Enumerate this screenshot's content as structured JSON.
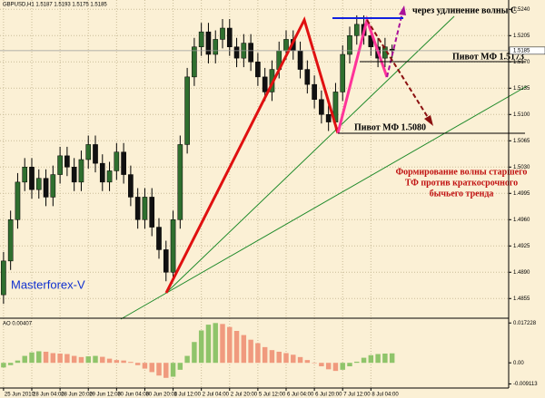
{
  "chart_data": [
    {
      "type": "candlestick",
      "title": "GBPUSD,H1  1.5187 1.5193 1.5175 1.5185",
      "open": [
        1.486,
        1.4905,
        1.496,
        1.501,
        1.503,
        1.5,
        1.5015,
        1.499,
        1.502,
        1.5045,
        1.503,
        1.501,
        1.504,
        1.506,
        1.5035,
        1.501,
        1.5025,
        1.505,
        1.502,
        1.499,
        1.496,
        1.499,
        1.495,
        1.492,
        1.489,
        1.496,
        1.506,
        1.515,
        1.519,
        1.521,
        1.518,
        1.52,
        1.5215,
        1.519,
        1.5175,
        1.5195,
        1.517,
        1.515,
        1.513,
        1.516,
        1.5185,
        1.52,
        1.5185,
        1.516,
        1.514,
        1.512,
        1.51,
        1.509,
        1.513,
        1.518,
        1.5205,
        1.522,
        1.5205,
        1.519,
        1.5175,
        1.5187
      ],
      "high": [
        1.4917,
        1.4972,
        1.5022,
        1.5042,
        1.5042,
        1.5027,
        1.5027,
        1.5032,
        1.5057,
        1.5057,
        1.5042,
        1.5052,
        1.5072,
        1.5072,
        1.5047,
        1.5037,
        1.5062,
        1.5062,
        1.5032,
        1.5002,
        1.5002,
        1.5002,
        1.4962,
        1.4932,
        1.4972,
        1.5072,
        1.5162,
        1.5202,
        1.5222,
        1.5222,
        1.5212,
        1.5227,
        1.5227,
        1.5202,
        1.5207,
        1.5207,
        1.5182,
        1.5162,
        1.5172,
        1.5197,
        1.5212,
        1.5212,
        1.5197,
        1.5172,
        1.5152,
        1.5132,
        1.5112,
        1.5142,
        1.5192,
        1.5217,
        1.5232,
        1.5232,
        1.5217,
        1.5202,
        1.5202,
        1.5193
      ],
      "low": [
        1.4848,
        1.4893,
        1.4948,
        1.4998,
        1.4988,
        1.4988,
        1.4978,
        1.4978,
        1.5008,
        1.5018,
        1.4998,
        1.4998,
        1.5028,
        1.5023,
        1.4998,
        1.4998,
        1.5013,
        1.5008,
        1.4978,
        1.4948,
        1.4948,
        1.4938,
        1.4908,
        1.4878,
        1.4878,
        1.4948,
        1.5048,
        1.5138,
        1.5178,
        1.5168,
        1.5168,
        1.5188,
        1.5178,
        1.5163,
        1.5163,
        1.5158,
        1.5138,
        1.5118,
        1.5118,
        1.5148,
        1.5173,
        1.5173,
        1.5148,
        1.5128,
        1.5108,
        1.5088,
        1.5078,
        1.5078,
        1.5118,
        1.5168,
        1.5193,
        1.5193,
        1.5178,
        1.5163,
        1.5163,
        1.5175
      ],
      "close": [
        1.4905,
        1.496,
        1.501,
        1.503,
        1.5,
        1.5015,
        1.499,
        1.502,
        1.5045,
        1.503,
        1.501,
        1.504,
        1.506,
        1.5035,
        1.501,
        1.5025,
        1.505,
        1.502,
        1.499,
        1.496,
        1.499,
        1.495,
        1.492,
        1.489,
        1.496,
        1.506,
        1.515,
        1.519,
        1.521,
        1.518,
        1.52,
        1.5215,
        1.519,
        1.5175,
        1.5195,
        1.517,
        1.515,
        1.513,
        1.516,
        1.5185,
        1.52,
        1.5185,
        1.516,
        1.514,
        1.512,
        1.51,
        1.509,
        1.513,
        1.518,
        1.5205,
        1.522,
        1.5205,
        1.519,
        1.5175,
        1.519,
        1.5185
      ],
      "up_color": "#2f6f2f",
      "down_color": "#111111",
      "ylim": [
        1.483,
        1.525
      ],
      "yticks": [
        {
          "value": 1.524,
          "label": "1.5240"
        },
        1.5205,
        {
          "value": 1.517,
          "label": "1.5170"
        },
        1.5135,
        {
          "value": 1.51,
          "label": "1.5100"
        },
        1.5065,
        {
          "value": 1.503,
          "label": "1.5030"
        },
        1.4995,
        {
          "value": 1.496,
          "label": "1.4960"
        },
        1.4925,
        {
          "value": 1.489,
          "label": "1.4890"
        },
        1.4855
      ],
      "xlim": [
        -0.5,
        71.5
      ],
      "xticks": [
        {
          "value": 0,
          "label": "25 Jun 2010"
        },
        {
          "value": 4,
          "label": "28 Jun 04:00"
        },
        {
          "value": 8,
          "label": "28 Jun 20:00"
        },
        {
          "value": 12,
          "label": "29 Jun 12:00"
        },
        {
          "value": 16,
          "label": "30 Jun 04:00"
        },
        {
          "value": 20,
          "label": "30 Jun 20:00"
        },
        {
          "value": 24,
          "label": "1 Jul 12:00"
        },
        {
          "value": 28,
          "label": "2 Jul 04:00"
        },
        {
          "value": 32,
          "label": "2 Jul 20:00"
        },
        {
          "value": 36,
          "label": "5 Jul 12:00"
        },
        {
          "value": 40,
          "label": "6 Jul 04:00"
        },
        {
          "value": 44,
          "label": "6 Jul 20:00"
        },
        {
          "value": 48,
          "label": "7 Jul 12:00"
        },
        {
          "value": 52,
          "label": "8 Jul 04:00"
        }
      ],
      "current_price": 1.5185,
      "grid": true,
      "annotations": [
        "через удлинение волны С",
        "Пивот МФ 1.5173",
        "Пивот МФ 1.5080",
        "Формирование волны старшего",
        "ТФ против краткосрочного",
        "бычьего тренда",
        "Masterforex-V"
      ]
    },
    {
      "type": "bar",
      "title": "AO 0.00407",
      "values": [
        -0.002,
        -0.001,
        0.001,
        0.003,
        0.0045,
        0.005,
        0.0048,
        0.0042,
        0.004,
        0.0038,
        0.003,
        0.0025,
        0.0028,
        0.003,
        0.0026,
        0.0018,
        0.0012,
        0.001,
        0.0004,
        -0.001,
        -0.0025,
        -0.004,
        -0.0055,
        -0.0065,
        -0.006,
        -0.003,
        0.003,
        0.009,
        0.014,
        0.0165,
        0.0172,
        0.0168,
        0.0155,
        0.0138,
        0.012,
        0.01,
        0.0085,
        0.0068,
        0.0055,
        0.0048,
        0.0042,
        0.0035,
        0.0025,
        0.0012,
        0.0,
        -0.0015,
        -0.0028,
        -0.0035,
        -0.003,
        -0.0015,
        0.0005,
        0.0022,
        0.0033,
        0.0038,
        0.004,
        0.0041
      ],
      "up_color": "#8fc46a",
      "down_color": "#f09a7e",
      "ylim": [
        -0.0105,
        0.0185
      ],
      "yticks": [
        0.017228,
        {
          "value": 0,
          "label": "0.00"
        },
        -0.009113
      ]
    }
  ]
}
